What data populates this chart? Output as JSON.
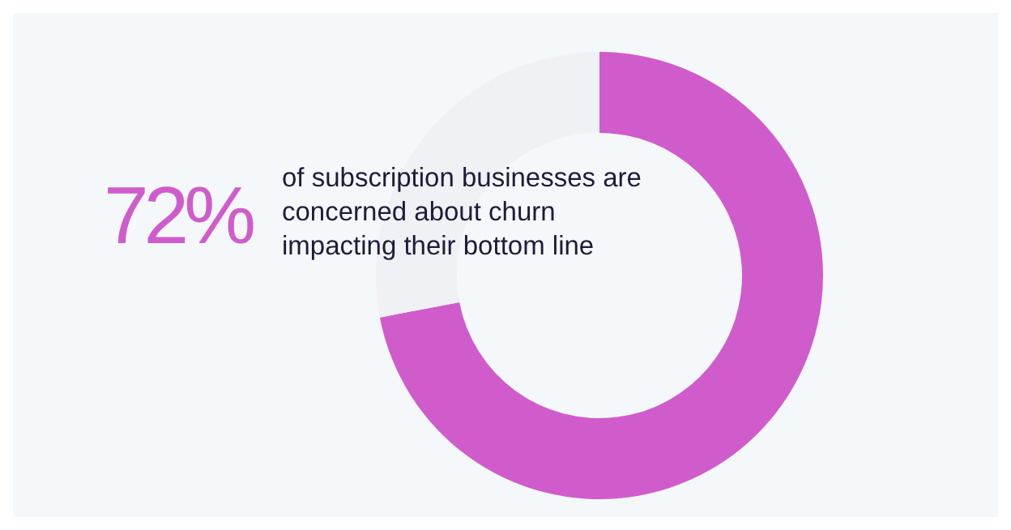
{
  "chart_data": {
    "type": "donut",
    "categories": [
      null,
      null
    ],
    "values": [
      72,
      28
    ],
    "colors": [
      "#d05ccc",
      "#f0f1f4"
    ],
    "value_labels": [
      "72%",
      null
    ],
    "annotations": [
      "of subscription businesses are concerned about churn impacting their bottom line"
    ],
    "legend": false
  }
}
